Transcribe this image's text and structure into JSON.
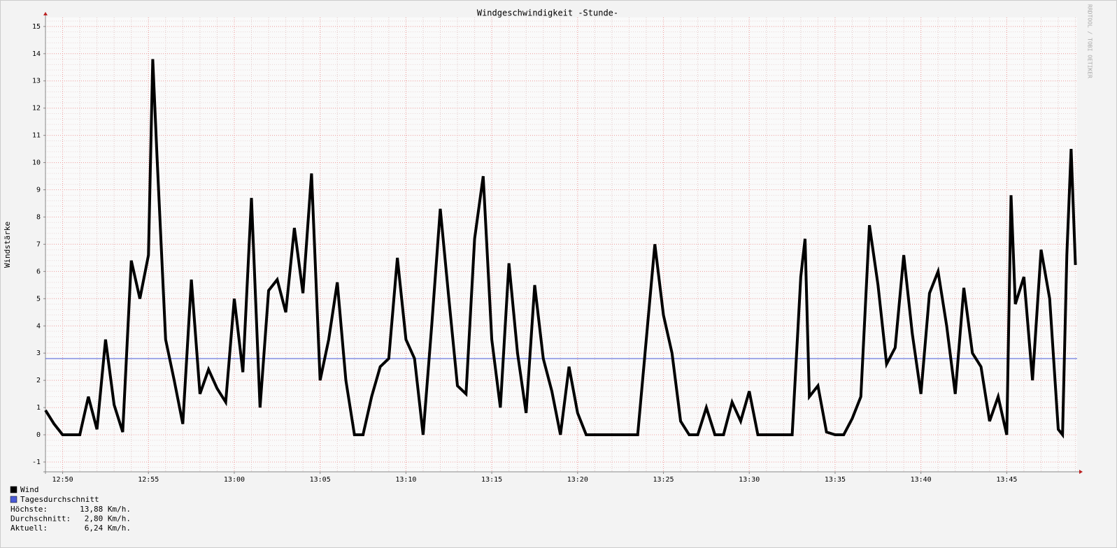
{
  "chart_data": {
    "type": "line",
    "title": "Windgeschwindigkeit -Stunde-",
    "y_label": "Windstärke",
    "watermark": "RRDTOOL / TOBI OETIKER",
    "x": [
      769,
      769.5,
      770,
      770.5,
      771,
      771.5,
      772,
      772.5,
      773,
      773.5,
      774,
      774.5,
      775,
      775.25,
      775.5,
      776,
      776.5,
      777,
      777.5,
      778,
      778.5,
      779,
      779.5,
      780,
      780.5,
      781,
      781.5,
      782,
      782.5,
      783,
      783.5,
      784,
      784.5,
      785,
      785.5,
      786,
      786.5,
      787,
      787.5,
      788,
      788.5,
      789,
      789.5,
      790,
      790.5,
      791,
      791.5,
      792,
      792.5,
      793,
      793.5,
      794,
      794.5,
      795,
      795.5,
      796,
      796.5,
      797,
      797.5,
      798,
      798.5,
      799,
      799.5,
      800,
      800.5,
      801,
      801.5,
      802,
      802.5,
      803,
      803.5,
      804,
      804.5,
      805,
      805.5,
      806,
      806.5,
      807,
      807.5,
      808,
      808.5,
      809,
      809.5,
      810,
      810.5,
      811,
      811.5,
      812,
      812.5,
      813,
      813.25,
      813.5,
      814,
      814.5,
      815,
      815.5,
      816,
      816.5,
      817,
      817.5,
      818,
      818.5,
      819,
      819.5,
      820,
      820.5,
      821,
      821.5,
      822,
      822.5,
      823,
      823.5,
      824,
      824.5,
      825,
      825.25,
      825.5,
      826,
      826.5,
      827,
      827.5,
      828,
      828.25,
      828.5,
      828.75,
      829
    ],
    "series": [
      {
        "name": "Wind",
        "color": "#000000",
        "values": [
          0.9,
          0.4,
          0,
          0,
          0,
          1.4,
          0.2,
          3.5,
          1.1,
          0.1,
          6.4,
          5.0,
          6.6,
          13.8,
          10.2,
          3.5,
          2.0,
          0.4,
          5.7,
          1.5,
          2.4,
          1.7,
          1.2,
          5.0,
          2.3,
          8.7,
          1.0,
          5.3,
          5.7,
          4.5,
          7.6,
          5.2,
          9.6,
          2.0,
          3.5,
          5.6,
          2.0,
          0,
          0,
          1.4,
          2.5,
          2.8,
          6.5,
          3.5,
          2.8,
          0,
          4.0,
          8.3,
          5.0,
          1.8,
          1.5,
          7.2,
          9.5,
          3.5,
          1.0,
          6.3,
          3.0,
          0.8,
          5.5,
          2.8,
          1.6,
          0,
          2.5,
          0.8,
          0,
          0,
          0,
          0,
          0,
          0,
          0,
          3.5,
          7.0,
          4.4,
          3.0,
          0.5,
          0,
          0,
          1.0,
          0,
          0,
          1.2,
          0.5,
          1.6,
          0,
          0,
          0,
          0,
          0,
          5.8,
          7.2,
          1.4,
          1.8,
          0.1,
          0,
          0,
          0.6,
          1.4,
          7.7,
          5.5,
          2.6,
          3.2,
          6.6,
          3.7,
          1.5,
          5.2,
          6.0,
          4.0,
          1.5,
          5.4,
          3.0,
          2.5,
          0.5,
          1.4,
          0,
          8.8,
          4.8,
          5.8,
          2.0,
          6.8,
          5.0,
          0.2,
          0,
          6.6,
          10.5,
          6.24
        ]
      }
    ],
    "hlines": [
      {
        "name": "Tagesdurchschnitt",
        "color": "#4a5bd6",
        "value": 2.8
      }
    ],
    "stats": [
      {
        "label": "Höchste:",
        "value": "13,88 Km/h."
      },
      {
        "label": "Durchschnitt:",
        "value": "2,80 Km/h."
      },
      {
        "label": "Aktuell:",
        "value": "6,24 Km/h."
      }
    ],
    "xlim": [
      769,
      829.1
    ],
    "xticks": [
      {
        "value": 770,
        "label": "12:50"
      },
      {
        "value": 775,
        "label": "12:55"
      },
      {
        "value": 780,
        "label": "13:00"
      },
      {
        "value": 785,
        "label": "13:05"
      },
      {
        "value": 790,
        "label": "13:10"
      },
      {
        "value": 795,
        "label": "13:15"
      },
      {
        "value": 800,
        "label": "13:20"
      },
      {
        "value": 805,
        "label": "13:25"
      },
      {
        "value": 810,
        "label": "13:30"
      },
      {
        "value": 815,
        "label": "13:35"
      },
      {
        "value": 820,
        "label": "13:40"
      },
      {
        "value": 825,
        "label": "13:45"
      }
    ],
    "ylim": [
      -1.36,
      15.33
    ],
    "yticks": [
      -1,
      0,
      1,
      2,
      3,
      4,
      5,
      6,
      7,
      8,
      9,
      10,
      11,
      12,
      13,
      14,
      15
    ],
    "grid": true
  }
}
